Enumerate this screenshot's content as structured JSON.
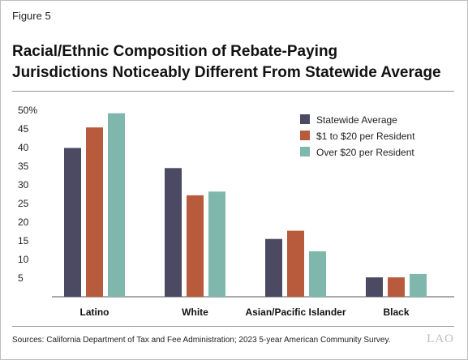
{
  "figure_label": "Figure 5",
  "title_line1": "Racial/Ethnic Composition of Rebate-Paying",
  "title_line2": "Jurisdictions Noticeably Different From Statewide Average",
  "source": "Sources: California Department of Tax and Fee Administration; 2023 5-year American Community Survey.",
  "logo_text": "LAO",
  "chart_data": {
    "type": "bar",
    "categories": [
      "Latino",
      "White",
      "Asian/Pacific Islander",
      "Black"
    ],
    "series": [
      {
        "name": "Statewide Average",
        "color": "#4b4a62",
        "values": [
          39.9,
          34.5,
          15.5,
          5.2
        ]
      },
      {
        "name": "$1 to $20 per Resident",
        "color": "#b85a3c",
        "values": [
          45.4,
          27.2,
          17.7,
          5.2
        ]
      },
      {
        "name": "Over $20 per Resident",
        "color": "#7fb7ac",
        "values": [
          49.2,
          28.2,
          12.2,
          6.1
        ]
      }
    ],
    "yticks": [
      "50%",
      "45",
      "40",
      "35",
      "30",
      "25",
      "20",
      "15",
      "10",
      "5"
    ],
    "ylim": [
      0,
      50
    ],
    "legend_position": "top-right",
    "grid": false
  }
}
